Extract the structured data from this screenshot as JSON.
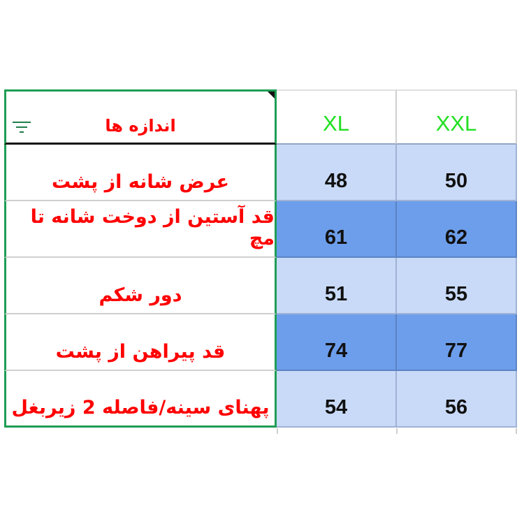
{
  "header": {
    "label": "اندازه ها",
    "sizes": [
      "XL",
      "XXL"
    ]
  },
  "rows": [
    {
      "label": "عرض شانه از پشت",
      "values": [
        "48",
        "50"
      ],
      "shade": "light"
    },
    {
      "label": "قد آستین از دوخت شانه تا مچ",
      "values": [
        "61",
        "62"
      ],
      "shade": "dark"
    },
    {
      "label": "دور شکم",
      "values": [
        "51",
        "55"
      ],
      "shade": "light"
    },
    {
      "label": "قد پیراهن از پشت",
      "values": [
        "74",
        "77"
      ],
      "shade": "dark"
    },
    {
      "label": "پهنای سینه/فاصله 2 زیربغل",
      "values": [
        "54",
        "56"
      ],
      "shade": "light"
    }
  ],
  "colors": {
    "label_text": "#ff0000",
    "size_text": "#22e022",
    "light_fill": "#c9daf8",
    "dark_fill": "#6d9eeb",
    "selection": "#1e9e55"
  },
  "icons": {
    "filter": "filter-icon"
  }
}
